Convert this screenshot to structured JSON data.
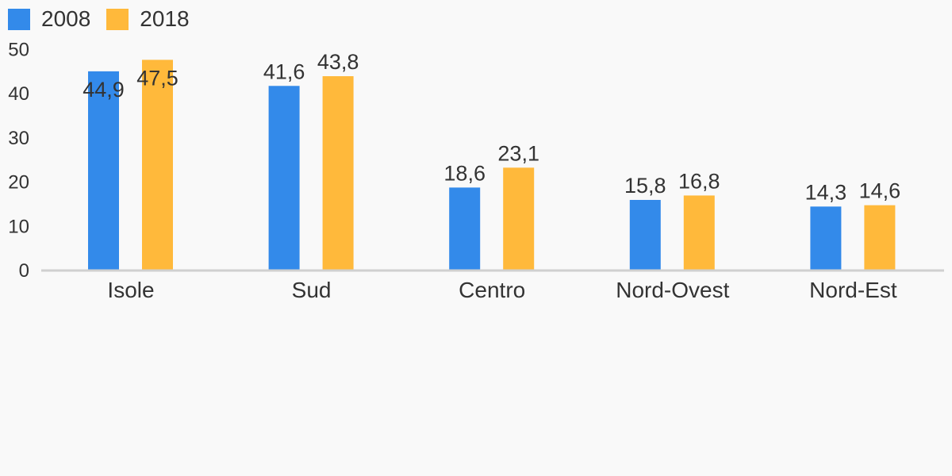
{
  "chart_data": {
    "type": "bar",
    "categories": [
      "Isole",
      "Sud",
      "Centro",
      "Nord-Ovest",
      "Nord-Est"
    ],
    "series": [
      {
        "name": "2008",
        "color": "#338aea",
        "values": [
          44.9,
          41.6,
          18.6,
          15.8,
          14.3
        ],
        "labels": [
          "44,9",
          "41,6",
          "18,6",
          "15,8",
          "14,3"
        ]
      },
      {
        "name": "2018",
        "color": "#ffb93b",
        "values": [
          47.5,
          43.8,
          23.1,
          16.8,
          14.6
        ],
        "labels": [
          "47,5",
          "43,8",
          "23,1",
          "16,8",
          "14,6"
        ]
      }
    ],
    "yticks": [
      "0",
      "10",
      "20",
      "30",
      "40",
      "50"
    ],
    "ylim": [
      0,
      50
    ],
    "grid": false,
    "legend": "top-left",
    "axis_color": "#d0d0d0"
  }
}
